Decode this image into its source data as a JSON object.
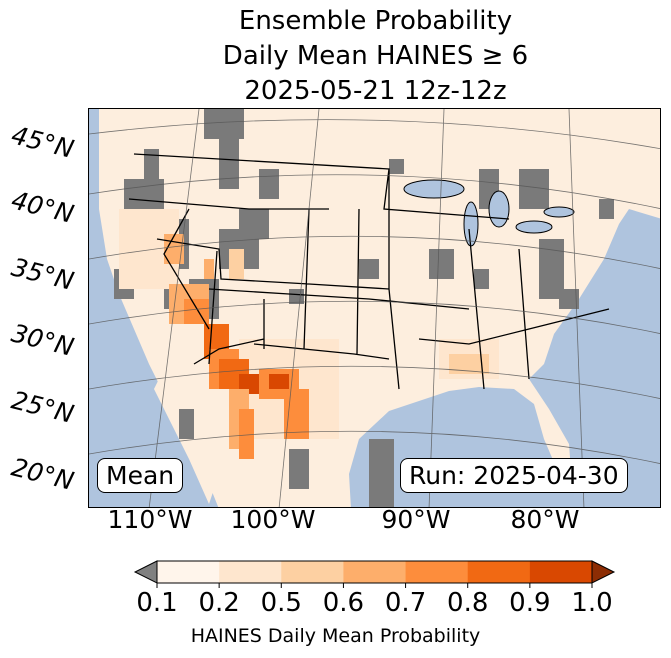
{
  "title": {
    "line1": "Ensemble Probability",
    "line2": "Daily Mean HAINES ≥ 6",
    "line3": "2025-05-21 12z-12z"
  },
  "lat_labels": [
    "45°N",
    "40°N",
    "35°N",
    "30°N",
    "25°N",
    "20°N"
  ],
  "lon_labels": [
    "110°W",
    "100°W",
    "90°W",
    "80°W"
  ],
  "boxes": {
    "left": "Mean",
    "right": "Run: 2025-04-30"
  },
  "colorbar": {
    "ticks": [
      "0.1",
      "0.2",
      "0.5",
      "0.6",
      "0.7",
      "0.8",
      "0.9",
      "1.0"
    ],
    "colors": [
      "#fff5eb",
      "#fee6ce",
      "#fdd0a2",
      "#fdae6b",
      "#fd8d3c",
      "#f16913",
      "#d94801"
    ],
    "under_color": "#808080",
    "over_color": "#8c2d04",
    "label": "HAINES Daily Mean Probability"
  },
  "colors": {
    "ocean": "#afc4de",
    "land": "#fdeede",
    "missing": "#7a7a7a"
  }
}
